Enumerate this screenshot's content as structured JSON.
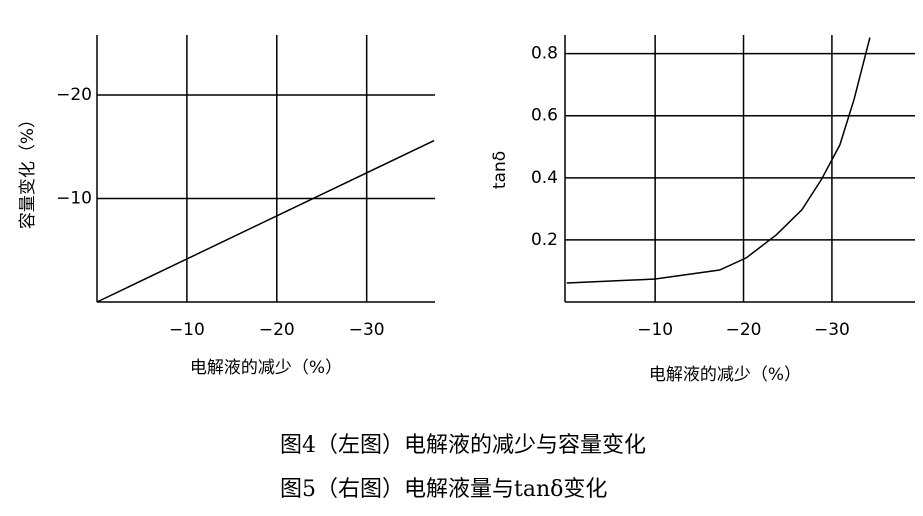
{
  "chart_data": [
    {
      "type": "line",
      "x_label": "电解液的减少（%）",
      "y_label": "容量变化（%）",
      "x": [
        0,
        -37.5
      ],
      "series": [
        {
          "color": "#000000",
          "values": [
            0,
            -15.6
          ]
        }
      ],
      "xlim": [
        0,
        -37.6
      ],
      "ylim": [
        0,
        -25.8
      ],
      "xticks": [
        {
          "value": -10,
          "label": "−10"
        },
        {
          "value": -20,
          "label": "−20"
        },
        {
          "value": -30,
          "label": "−30"
        }
      ],
      "yticks": [
        {
          "value": -10,
          "label": "−10"
        },
        {
          "value": -20,
          "label": "−20"
        }
      ],
      "grid": true
    },
    {
      "type": "line",
      "x_label": "电解液的减少（%）",
      "y_label": "tanδ",
      "x": [
        0,
        -10,
        -17.3,
        -20.3,
        -23.7,
        -26.6,
        -28.8,
        -30.9,
        -32.5,
        -34.3
      ],
      "series": [
        {
          "color": "#000000",
          "values": [
            0.061,
            0.074,
            0.103,
            0.142,
            0.216,
            0.297,
            0.394,
            0.506,
            0.652,
            0.852
          ]
        }
      ],
      "xlim": [
        0.2,
        -39.4
      ],
      "ylim": [
        0,
        0.86
      ],
      "xticks": [
        {
          "value": -10,
          "label": "−10"
        },
        {
          "value": -20,
          "label": "−20"
        },
        {
          "value": -30,
          "label": "−30"
        }
      ],
      "yticks": [
        0.2,
        0.4,
        0.6,
        0.8
      ],
      "grid": true
    }
  ],
  "captions": [
    "图4（左图）电解液的减少与容量变化",
    "图5（右图）电解液量与tanδ变化"
  ]
}
